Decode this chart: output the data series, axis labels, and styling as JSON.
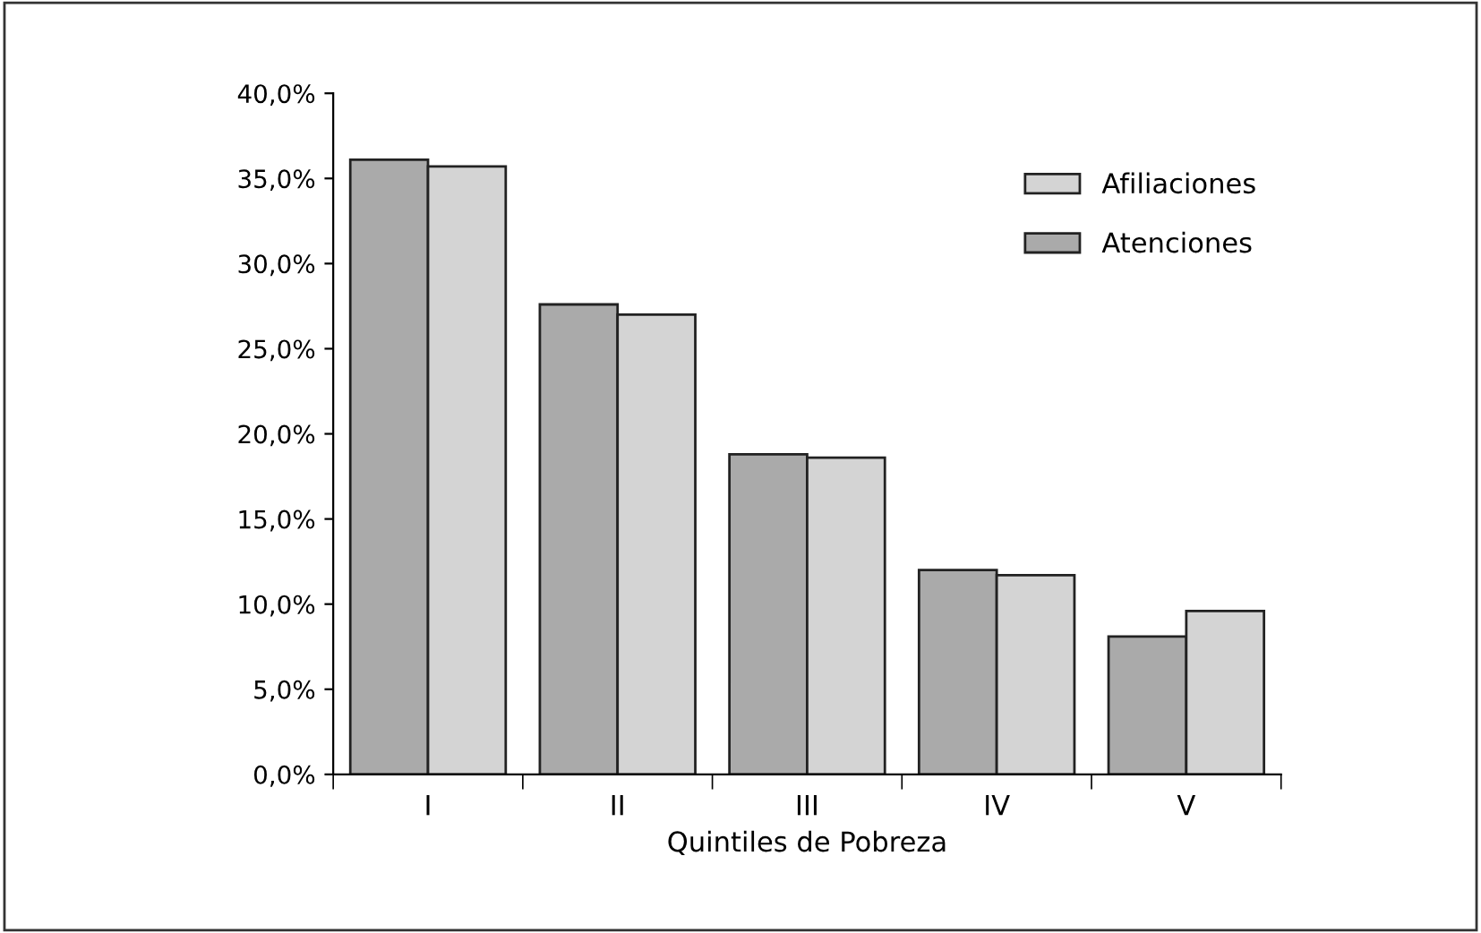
{
  "chart_data": {
    "type": "bar",
    "xlabel": "Quintiles de Pobreza",
    "categories": [
      "I",
      "II",
      "III",
      "IV",
      "V"
    ],
    "series": [
      {
        "name": "Atenciones",
        "color": "#aaaaaa",
        "values": [
          36.1,
          27.6,
          18.8,
          12.0,
          8.1
        ]
      },
      {
        "name": "Afiliaciones",
        "color": "#d4d4d4",
        "values": [
          35.7,
          27.0,
          18.6,
          11.7,
          9.6
        ]
      }
    ],
    "ylim": [
      0,
      40
    ],
    "yticks": [
      {
        "value": 0,
        "label": "0,0%"
      },
      {
        "value": 5,
        "label": "5,0%"
      },
      {
        "value": 10,
        "label": "10,0%"
      },
      {
        "value": 15,
        "label": "15,0%"
      },
      {
        "value": 20,
        "label": "20,0%"
      },
      {
        "value": 25,
        "label": "25,0%"
      },
      {
        "value": 30,
        "label": "30,0%"
      },
      {
        "value": 35,
        "label": "35,0%"
      },
      {
        "value": 40,
        "label": "40,0%"
      }
    ],
    "legend": "top right",
    "grid": false
  }
}
